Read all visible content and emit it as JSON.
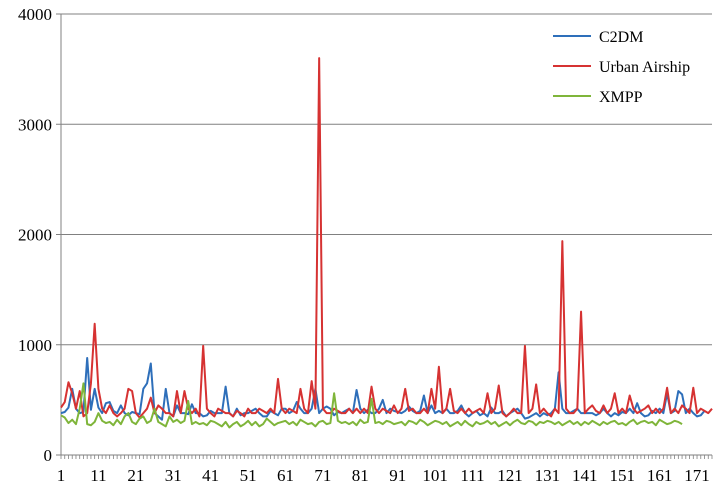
{
  "chart_data": {
    "type": "line",
    "title": "",
    "xlabel": "",
    "ylabel": "",
    "xlim": [
      1,
      175
    ],
    "ylim": [
      0,
      4000
    ],
    "x_ticks": [
      "1",
      "11",
      "21",
      "31",
      "41",
      "51",
      "61",
      "71",
      "81",
      "91",
      "101",
      "111",
      "121",
      "131",
      "141",
      "151",
      "161",
      "171"
    ],
    "y_ticks": [
      "0",
      "1000",
      "2000",
      "3000",
      "4000"
    ],
    "grid": "horizontal",
    "legend_position": "top-right",
    "series": [
      {
        "name": "C2DM",
        "color": "#2e6fba",
        "values": [
          380,
          390,
          430,
          600,
          420,
          380,
          390,
          880,
          410,
          600,
          430,
          380,
          470,
          480,
          400,
          380,
          450,
          380,
          360,
          390,
          380,
          370,
          600,
          650,
          830,
          380,
          350,
          320,
          600,
          380,
          350,
          450,
          380,
          380,
          370,
          460,
          380,
          380,
          350,
          360,
          400,
          380,
          380,
          380,
          620,
          380,
          350,
          420,
          360,
          380,
          380,
          400,
          420,
          380,
          350,
          350,
          400,
          380,
          360,
          420,
          420,
          380,
          400,
          480,
          420,
          380,
          380,
          420,
          600,
          380,
          420,
          440,
          420,
          360,
          390,
          380,
          400,
          420,
          380,
          590,
          420,
          380,
          410,
          380,
          380,
          420,
          500,
          380,
          420,
          400,
          390,
          380,
          400,
          440,
          400,
          380,
          400,
          540,
          380,
          450,
          380,
          400,
          380,
          420,
          380,
          380,
          400,
          450,
          380,
          350,
          380,
          400,
          360,
          380,
          350,
          430,
          380,
          380,
          400,
          350,
          380,
          400,
          420,
          380,
          330,
          340,
          360,
          380,
          350,
          380,
          360,
          380,
          420,
          750,
          420,
          380,
          380,
          400,
          420,
          380,
          380,
          380,
          380,
          360,
          380,
          420,
          380,
          350,
          380,
          360,
          390,
          380,
          420,
          380,
          470,
          380,
          350,
          360,
          400,
          380,
          420,
          380,
          560,
          380,
          400,
          580,
          550,
          380,
          420,
          380,
          350,
          360,
          400
        ]
      },
      {
        "name": "Urban Airship",
        "color": "#d63232",
        "values": [
          430,
          480,
          660,
          560,
          420,
          580,
          350,
          380,
          650,
          1190,
          600,
          420,
          380,
          450,
          380,
          350,
          380,
          420,
          600,
          580,
          380,
          340,
          380,
          420,
          520,
          380,
          450,
          420,
          380,
          380,
          350,
          580,
          380,
          580,
          420,
          380,
          420,
          350,
          990,
          420,
          380,
          350,
          420,
          400,
          380,
          380,
          350,
          400,
          380,
          350,
          420,
          380,
          380,
          420,
          400,
          380,
          420,
          380,
          690,
          420,
          380,
          420,
          400,
          380,
          600,
          420,
          380,
          670,
          420,
          3600,
          420,
          380,
          380,
          420,
          400,
          380,
          380,
          420,
          380,
          420,
          380,
          420,
          380,
          620,
          420,
          380,
          420,
          400,
          380,
          450,
          380,
          420,
          600,
          400,
          420,
          380,
          380,
          420,
          380,
          600,
          420,
          800,
          380,
          420,
          600,
          400,
          380,
          420,
          380,
          420,
          380,
          400,
          420,
          380,
          560,
          380,
          420,
          630,
          380,
          350,
          380,
          420,
          380,
          380,
          990,
          380,
          420,
          640,
          380,
          420,
          380,
          350,
          420,
          380,
          1940,
          420,
          380,
          380,
          420,
          1300,
          380,
          420,
          450,
          400,
          380,
          450,
          380,
          420,
          560,
          380,
          420,
          380,
          540,
          420,
          380,
          400,
          420,
          450,
          380,
          420,
          380,
          420,
          610,
          380,
          420,
          380,
          450,
          420,
          380,
          610,
          380,
          420,
          400,
          380,
          420
        ]
      },
      {
        "name": "XMPP",
        "color": "#7fb53a",
        "values": [
          360,
          340,
          290,
          320,
          280,
          420,
          650,
          280,
          270,
          300,
          380,
          310,
          290,
          300,
          270,
          320,
          280,
          350,
          380,
          300,
          280,
          330,
          350,
          290,
          310,
          420,
          300,
          280,
          260,
          350,
          300,
          320,
          290,
          310,
          490,
          280,
          300,
          280,
          290,
          270,
          310,
          300,
          280,
          260,
          300,
          250,
          280,
          300,
          260,
          280,
          310,
          270,
          300,
          260,
          280,
          330,
          300,
          270,
          290,
          300,
          310,
          280,
          300,
          270,
          320,
          300,
          280,
          290,
          260,
          300,
          310,
          280,
          290,
          560,
          310,
          290,
          300,
          280,
          300,
          270,
          320,
          290,
          300,
          510,
          290,
          300,
          280,
          310,
          300,
          280,
          290,
          300,
          270,
          310,
          300,
          280,
          320,
          300,
          270,
          290,
          310,
          300,
          280,
          300,
          260,
          280,
          300,
          270,
          310,
          280,
          260,
          300,
          280,
          290,
          310,
          280,
          300,
          260,
          280,
          300,
          270,
          300,
          320,
          290,
          280,
          310,
          300,
          270,
          300,
          290,
          310,
          300,
          280,
          300,
          270,
          290,
          310,
          280,
          300,
          270,
          300,
          280,
          310,
          290,
          270,
          300,
          280,
          300,
          310,
          280,
          290,
          270,
          300,
          320,
          280,
          300,
          310,
          290,
          300,
          270,
          320,
          300,
          280,
          290,
          310,
          300,
          280
        ]
      }
    ]
  }
}
